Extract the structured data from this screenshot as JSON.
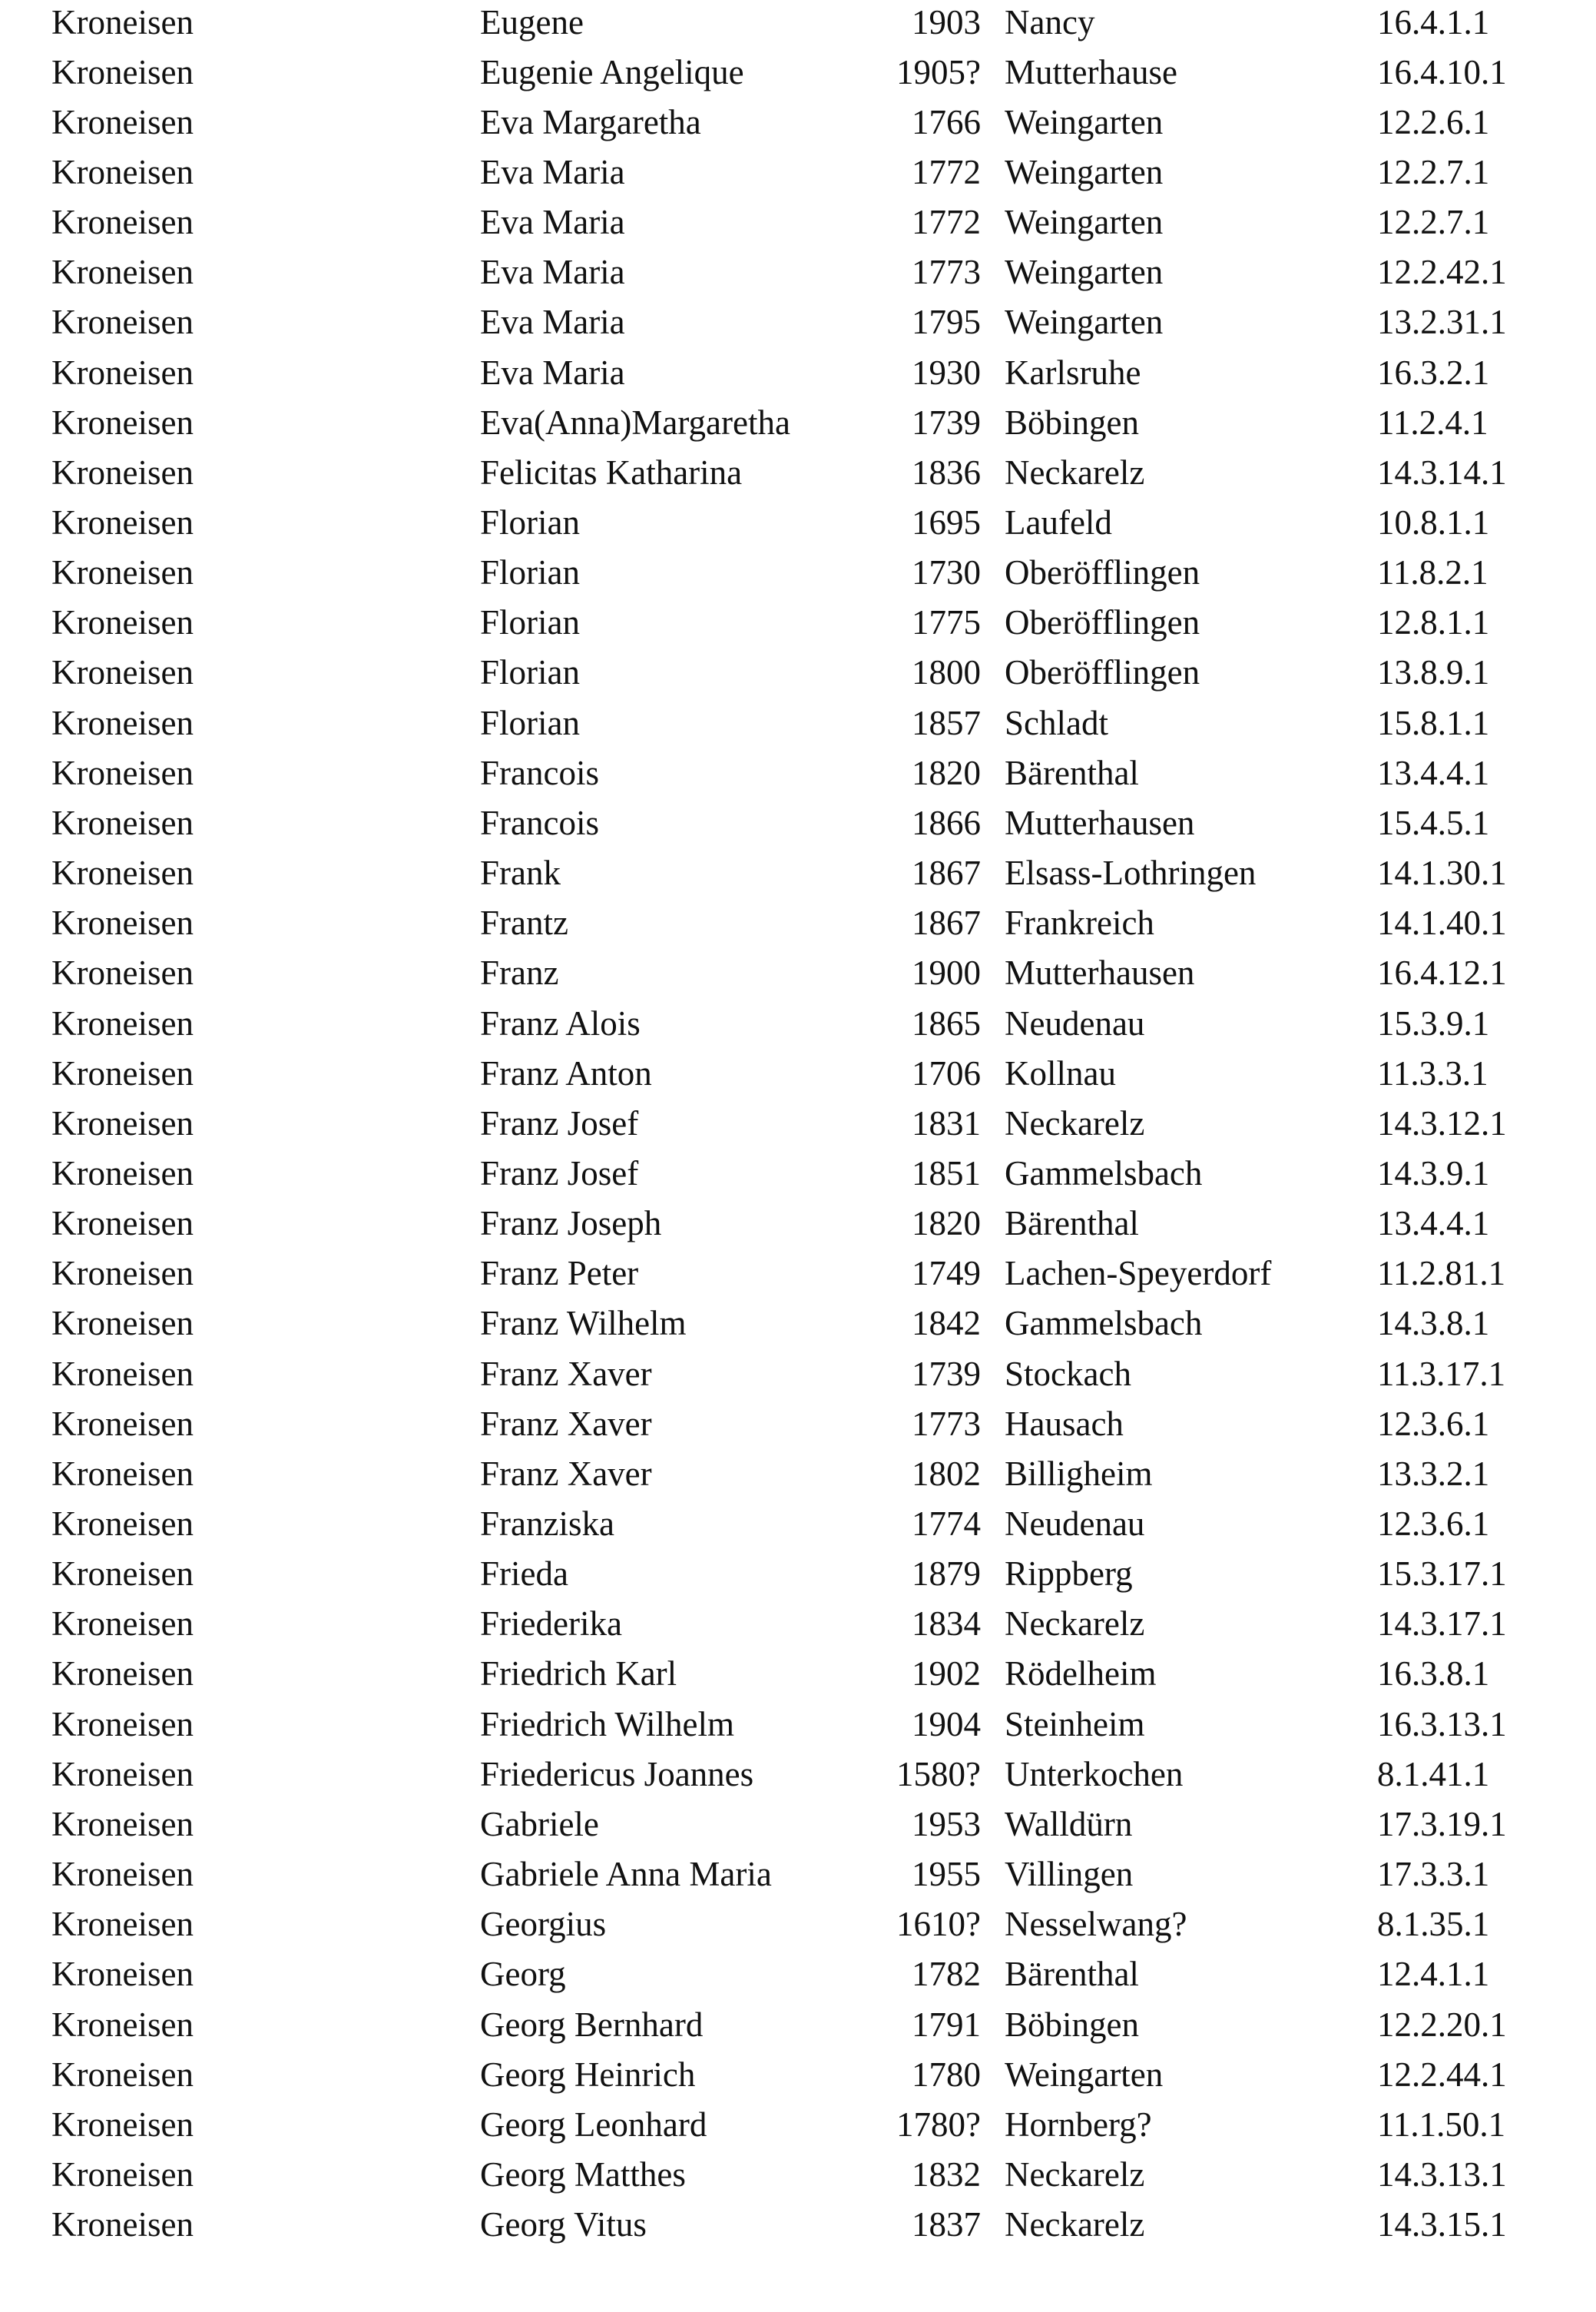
{
  "document": {
    "columns": [
      "surname",
      "given_name",
      "year",
      "place",
      "code"
    ],
    "rows": [
      [
        "Kroneisen",
        "Eugene",
        "1903",
        "Nancy",
        "16.4.1.1"
      ],
      [
        "Kroneisen",
        "Eugenie Angelique",
        "1905?",
        "Mutterhause",
        "16.4.10.1"
      ],
      [
        "Kroneisen",
        "Eva Margaretha",
        "1766",
        "Weingarten",
        "12.2.6.1"
      ],
      [
        "Kroneisen",
        "Eva Maria",
        "1772",
        "Weingarten",
        "12.2.7.1"
      ],
      [
        "Kroneisen",
        "Eva Maria",
        "1772",
        "Weingarten",
        "12.2.7.1"
      ],
      [
        "Kroneisen",
        "Eva Maria",
        "1773",
        "Weingarten",
        "12.2.42.1"
      ],
      [
        "Kroneisen",
        "Eva Maria",
        "1795",
        "Weingarten",
        "13.2.31.1"
      ],
      [
        "Kroneisen",
        "Eva Maria",
        "1930",
        "Karlsruhe",
        "16.3.2.1"
      ],
      [
        "Kroneisen",
        "Eva(Anna)Margaretha",
        "1739",
        "Böbingen",
        "11.2.4.1"
      ],
      [
        "Kroneisen",
        "Felicitas Katharina",
        "1836",
        "Neckarelz",
        "14.3.14.1"
      ],
      [
        "Kroneisen",
        "Florian",
        "1695",
        "Laufeld",
        "10.8.1.1"
      ],
      [
        "Kroneisen",
        "Florian",
        "1730",
        "Oberöfflingen",
        "11.8.2.1"
      ],
      [
        "Kroneisen",
        "Florian",
        "1775",
        "Oberöfflingen",
        "12.8.1.1"
      ],
      [
        "Kroneisen",
        "Florian",
        "1800",
        "Oberöfflingen",
        "13.8.9.1"
      ],
      [
        "Kroneisen",
        "Florian",
        "1857",
        "Schladt",
        "15.8.1.1"
      ],
      [
        "Kroneisen",
        "Francois",
        "1820",
        "Bärenthal",
        "13.4.4.1"
      ],
      [
        "Kroneisen",
        "Francois",
        "1866",
        "Mutterhausen",
        "15.4.5.1"
      ],
      [
        "Kroneisen",
        "Frank",
        "1867",
        "Elsass-Lothringen",
        "14.1.30.1"
      ],
      [
        "Kroneisen",
        "Frantz",
        "1867",
        "Frankreich",
        "14.1.40.1"
      ],
      [
        "Kroneisen",
        "Franz",
        "1900",
        "Mutterhausen",
        "16.4.12.1"
      ],
      [
        "Kroneisen",
        "Franz Alois",
        "1865",
        "Neudenau",
        "15.3.9.1"
      ],
      [
        "Kroneisen",
        "Franz Anton",
        "1706",
        "Kollnau",
        "11.3.3.1"
      ],
      [
        "Kroneisen",
        "Franz Josef",
        "1831",
        "Neckarelz",
        "14.3.12.1"
      ],
      [
        "Kroneisen",
        "Franz Josef",
        "1851",
        "Gammelsbach",
        "14.3.9.1"
      ],
      [
        "Kroneisen",
        "Franz Joseph",
        "1820",
        "Bärenthal",
        "13.4.4.1"
      ],
      [
        "Kroneisen",
        "Franz Peter",
        "1749",
        "Lachen-Speyerdorf",
        "11.2.81.1"
      ],
      [
        "Kroneisen",
        "Franz Wilhelm",
        "1842",
        "Gammelsbach",
        "14.3.8.1"
      ],
      [
        "Kroneisen",
        "Franz Xaver",
        "1739",
        "Stockach",
        "11.3.17.1"
      ],
      [
        "Kroneisen",
        "Franz Xaver",
        "1773",
        "Hausach",
        "12.3.6.1"
      ],
      [
        "Kroneisen",
        "Franz Xaver",
        "1802",
        "Billigheim",
        "13.3.2.1"
      ],
      [
        "Kroneisen",
        "Franziska",
        "1774",
        "Neudenau",
        "12.3.6.1"
      ],
      [
        "Kroneisen",
        "Frieda",
        "1879",
        "Rippberg",
        "15.3.17.1"
      ],
      [
        "Kroneisen",
        "Friederika",
        "1834",
        "Neckarelz",
        "14.3.17.1"
      ],
      [
        "Kroneisen",
        "Friedrich Karl",
        "1902",
        "Rödelheim",
        "16.3.8.1"
      ],
      [
        "Kroneisen",
        "Friedrich Wilhelm",
        "1904",
        "Steinheim",
        "16.3.13.1"
      ],
      [
        "Kroneisen",
        "Friedericus Joannes",
        "1580?",
        "Unterkochen",
        "8.1.41.1"
      ],
      [
        "Kroneisen",
        "Gabriele",
        "1953",
        "Walldürn",
        "17.3.19.1"
      ],
      [
        "Kroneisen",
        "Gabriele Anna Maria",
        "1955",
        "Villingen",
        "17.3.3.1"
      ],
      [
        "Kroneisen",
        "Georgius",
        "1610?",
        "Nesselwang?",
        "8.1.35.1"
      ],
      [
        "Kroneisen",
        "Georg",
        "1782",
        "Bärenthal",
        "12.4.1.1"
      ],
      [
        "Kroneisen",
        "Georg Bernhard",
        "1791",
        "Böbingen",
        "12.2.20.1"
      ],
      [
        "Kroneisen",
        "Georg Heinrich",
        "1780",
        "Weingarten",
        "12.2.44.1"
      ],
      [
        "Kroneisen",
        "Georg Leonhard",
        "1780?",
        "Hornberg?",
        "11.1.50.1"
      ],
      [
        "Kroneisen",
        "Georg Matthes",
        "1832",
        "Neckarelz",
        "14.3.13.1"
      ],
      [
        "Kroneisen",
        "Georg Vitus",
        "1837",
        "Neckarelz",
        "14.3.15.1"
      ]
    ]
  }
}
